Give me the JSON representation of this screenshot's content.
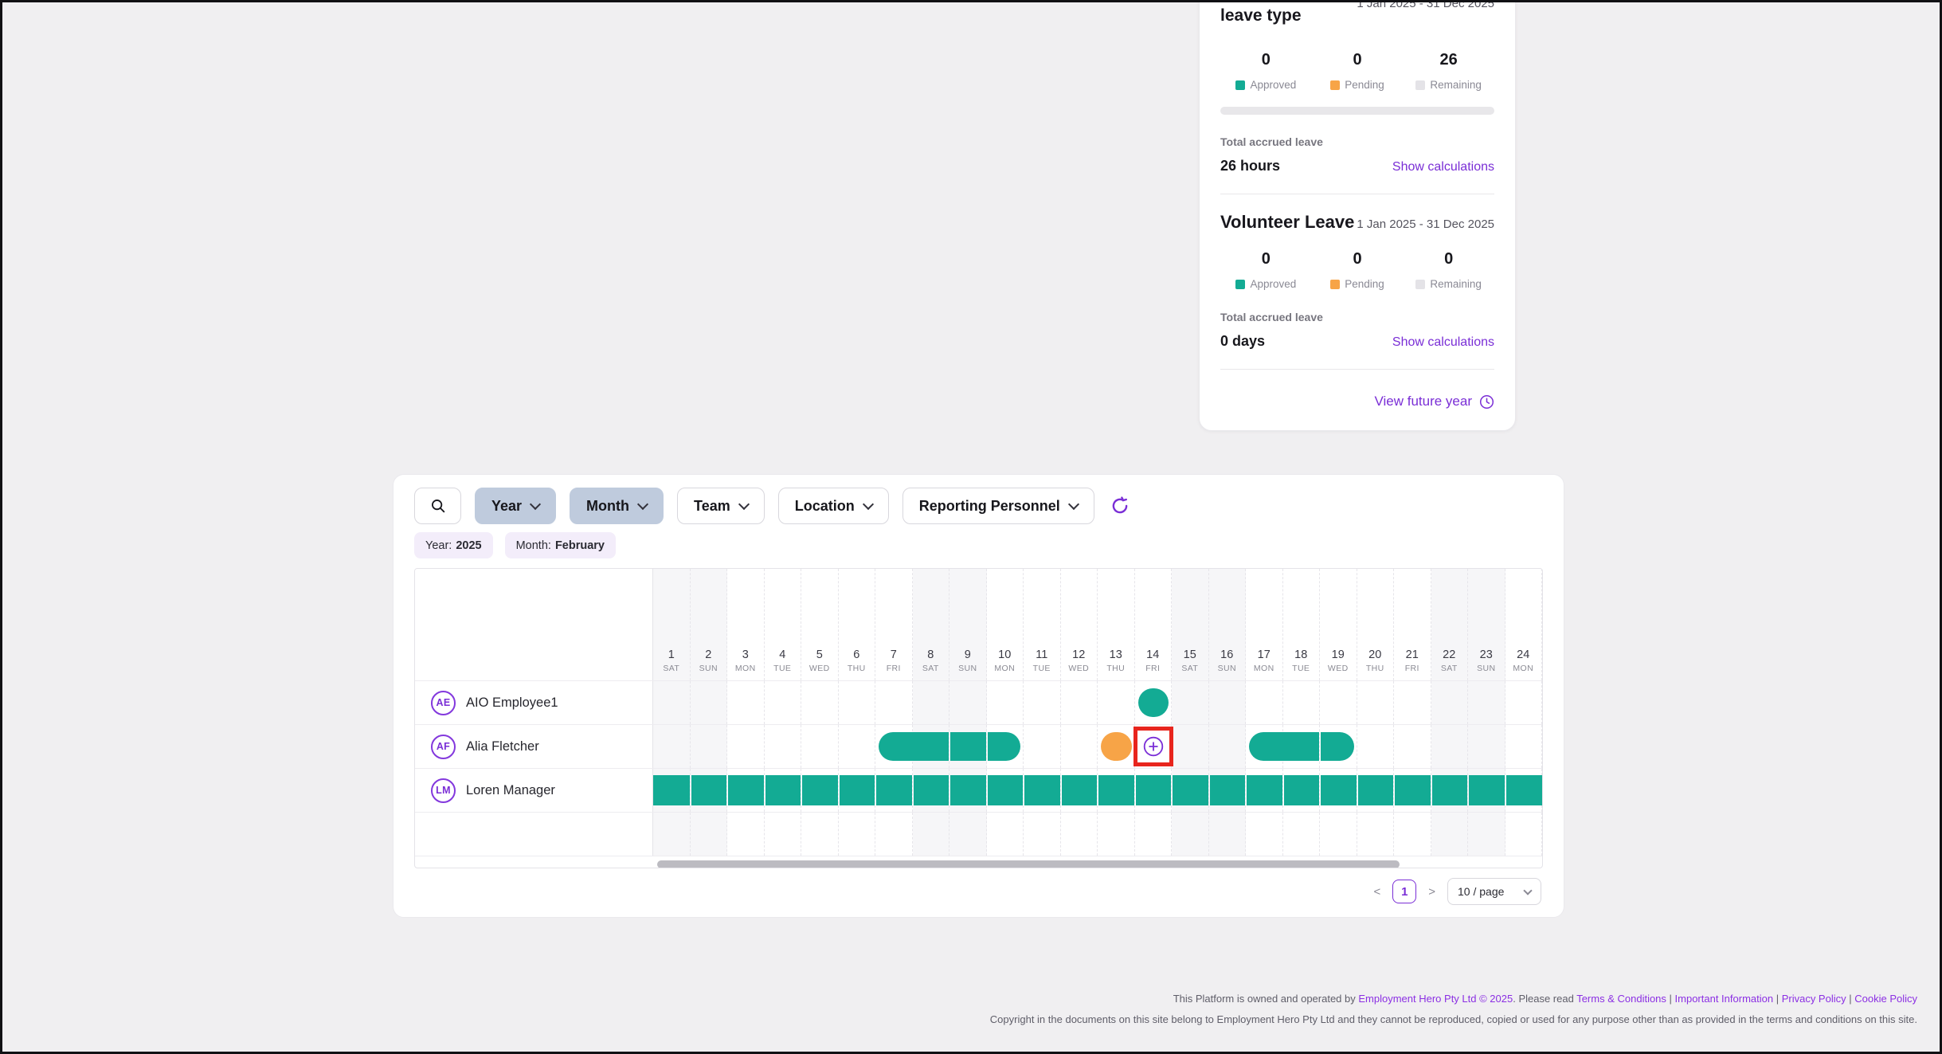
{
  "colors": {
    "approved": "#13ab94",
    "pending": "#f7a447",
    "remaining": "#e4e3e7",
    "accent_purple": "#7a2ed6",
    "highlight_red": "#e8251d",
    "active_filter_bg": "#bfcbdd",
    "chip_bg": "#f3edfa"
  },
  "icons": {
    "search": "magnifier",
    "refresh": "circular-arrow",
    "view_future": "clock",
    "add_leave": "plus-circle",
    "dropdown": "chevron-down"
  },
  "balance_card": {
    "header_period_clipped": "1 Jan 2025 - 31 Dec 2025",
    "title_partial": "leave type",
    "legend": [
      "Approved",
      "Pending",
      "Remaining"
    ],
    "sections": [
      {
        "approved": "0",
        "pending": "0",
        "remaining": "26",
        "accrued_label": "Total accrued leave",
        "accrued_value": "26 hours",
        "show_calculations": "Show calculations"
      },
      {
        "title": "Volunteer Leave",
        "period": "1 Jan 2025 - 31 Dec 2025",
        "approved": "0",
        "pending": "0",
        "remaining": "0",
        "accrued_label": "Total accrued leave",
        "accrued_value": "0 days",
        "show_calculations": "Show calculations"
      }
    ],
    "view_future_year": "View future year"
  },
  "filters": {
    "buttons": [
      {
        "label": "Year",
        "active": true
      },
      {
        "label": "Month",
        "active": true
      },
      {
        "label": "Team",
        "active": false
      },
      {
        "label": "Location",
        "active": false
      },
      {
        "label": "Reporting Personnel",
        "active": false
      }
    ],
    "chips": [
      {
        "label": "Year:",
        "value": "2025"
      },
      {
        "label": "Month:",
        "value": "February"
      }
    ]
  },
  "calendar": {
    "weekends": [
      "SAT",
      "SUN"
    ],
    "days": [
      {
        "num": "1",
        "dow": "SAT"
      },
      {
        "num": "2",
        "dow": "SUN"
      },
      {
        "num": "3",
        "dow": "MON"
      },
      {
        "num": "4",
        "dow": "TUE"
      },
      {
        "num": "5",
        "dow": "WED"
      },
      {
        "num": "6",
        "dow": "THU"
      },
      {
        "num": "7",
        "dow": "FRI"
      },
      {
        "num": "8",
        "dow": "SAT"
      },
      {
        "num": "9",
        "dow": "SUN"
      },
      {
        "num": "10",
        "dow": "MON"
      },
      {
        "num": "11",
        "dow": "TUE"
      },
      {
        "num": "12",
        "dow": "WED"
      },
      {
        "num": "13",
        "dow": "THU"
      },
      {
        "num": "14",
        "dow": "FRI"
      },
      {
        "num": "15",
        "dow": "SAT"
      },
      {
        "num": "16",
        "dow": "SUN"
      },
      {
        "num": "17",
        "dow": "MON"
      },
      {
        "num": "18",
        "dow": "TUE"
      },
      {
        "num": "19",
        "dow": "WED"
      },
      {
        "num": "20",
        "dow": "THU"
      },
      {
        "num": "21",
        "dow": "FRI"
      },
      {
        "num": "22",
        "dow": "SAT"
      },
      {
        "num": "23",
        "dow": "SUN"
      },
      {
        "num": "24",
        "dow": "MON"
      }
    ],
    "rows": [
      {
        "initials": "AE",
        "name": "AIO Employee1",
        "bars": [
          {
            "type": "approved",
            "start": 14,
            "end": 14,
            "round": "both"
          }
        ]
      },
      {
        "initials": "AF",
        "name": "Alia Fletcher",
        "bars": [
          {
            "type": "approved",
            "start": 7,
            "end": 8,
            "round": "left"
          },
          {
            "type": "approved",
            "start": 9,
            "end": 9,
            "round": "none"
          },
          {
            "type": "approved",
            "start": 10,
            "end": 10,
            "round": "right"
          },
          {
            "type": "pending",
            "start": 13,
            "end": 13,
            "round": "both"
          },
          {
            "type": "add-slot",
            "start": 14,
            "end": 14,
            "highlighted": true
          },
          {
            "type": "approved",
            "start": 17,
            "end": 18,
            "round": "left"
          },
          {
            "type": "approved",
            "start": 19,
            "end": 19,
            "round": "right"
          }
        ]
      },
      {
        "initials": "LM",
        "name": "Loren Manager",
        "bars": [
          {
            "type": "approved-flat",
            "start": 1,
            "end": 24
          }
        ]
      }
    ]
  },
  "pagination": {
    "prev": "<",
    "current": "1",
    "next": ">",
    "page_size": "10 / page"
  },
  "footer": {
    "line1_parts": [
      {
        "text": "This Platform is owned and operated by ",
        "link": false
      },
      {
        "text": "Employment Hero Pty Ltd © 2025",
        "link": true
      },
      {
        "text": ". Please read ",
        "link": false
      },
      {
        "text": "Terms & Conditions",
        "link": true
      },
      {
        "text": " | ",
        "link": false
      },
      {
        "text": "Important Information",
        "link": true
      },
      {
        "text": " | ",
        "link": false
      },
      {
        "text": "Privacy Policy",
        "link": true
      },
      {
        "text": " | ",
        "link": false
      },
      {
        "text": "Cookie Policy",
        "link": true
      }
    ],
    "line2": "Copyright in the documents on this site belong to Employment Hero Pty Ltd and they cannot be reproduced, copied or used for any purpose other than as provided in the terms and conditions on this site."
  }
}
